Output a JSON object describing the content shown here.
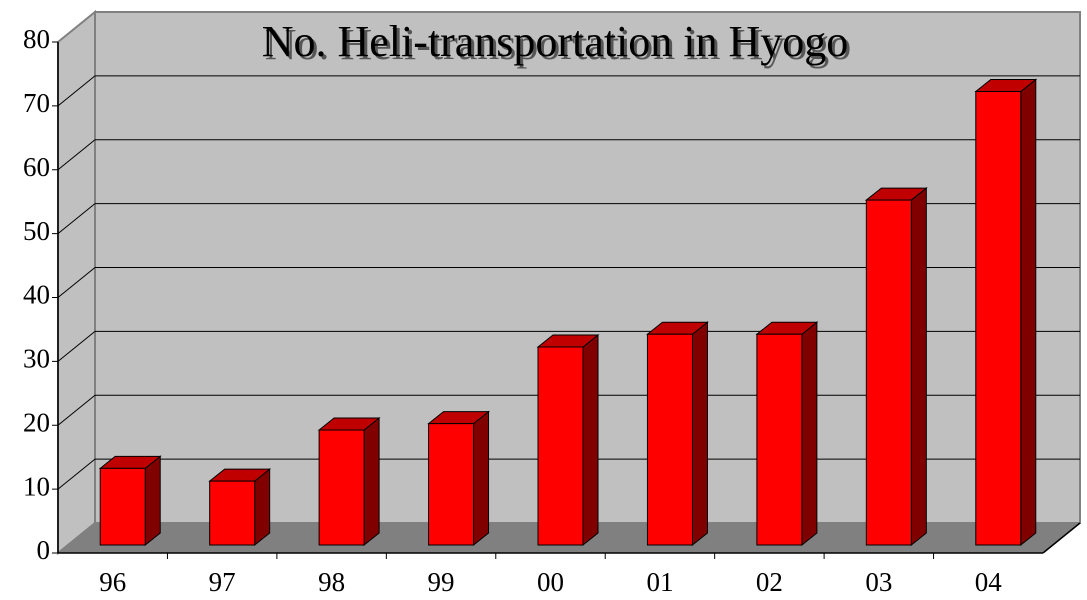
{
  "chart_data": {
    "type": "bar3d",
    "title": "No. Heli-transportation in Hyogo",
    "categories": [
      "96",
      "97",
      "98",
      "99",
      "00",
      "01",
      "02",
      "03",
      "04"
    ],
    "values": [
      12,
      10,
      18,
      19,
      31,
      33,
      33,
      54,
      71
    ],
    "color": "#ff0000",
    "title_color": "#1a1acc",
    "ylim": [
      0,
      80
    ],
    "yticks": [
      0,
      10,
      20,
      30,
      40,
      50,
      60,
      70,
      80
    ],
    "grid": true
  }
}
